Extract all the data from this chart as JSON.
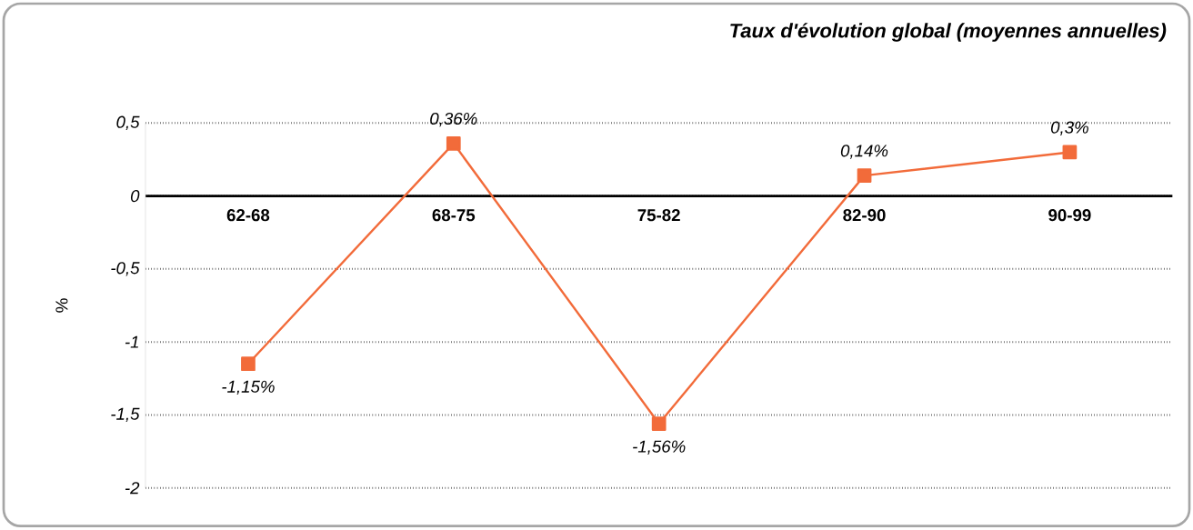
{
  "chart_data": {
    "type": "line",
    "title": "Taux d'évolution global (moyennes annuelles)",
    "ylabel": "%",
    "categories": [
      "62-68",
      "68-75",
      "75-82",
      "82-90",
      "90-99"
    ],
    "values": [
      -1.15,
      0.36,
      -1.56,
      0.14,
      0.3
    ],
    "value_labels": [
      "-1,15%",
      "0,36%",
      "-1,56%",
      "0,14%",
      "0,3%"
    ],
    "color": "#f26b3a",
    "marker": "square",
    "grid": "y",
    "ylim": [
      -2,
      0.5
    ],
    "yticks": [
      {
        "value": 0.5,
        "label": "0,5"
      },
      0,
      {
        "value": -0.5,
        "label": "-0,5"
      },
      -1,
      {
        "value": -1.5,
        "label": "-1,5"
      },
      -2
    ]
  }
}
